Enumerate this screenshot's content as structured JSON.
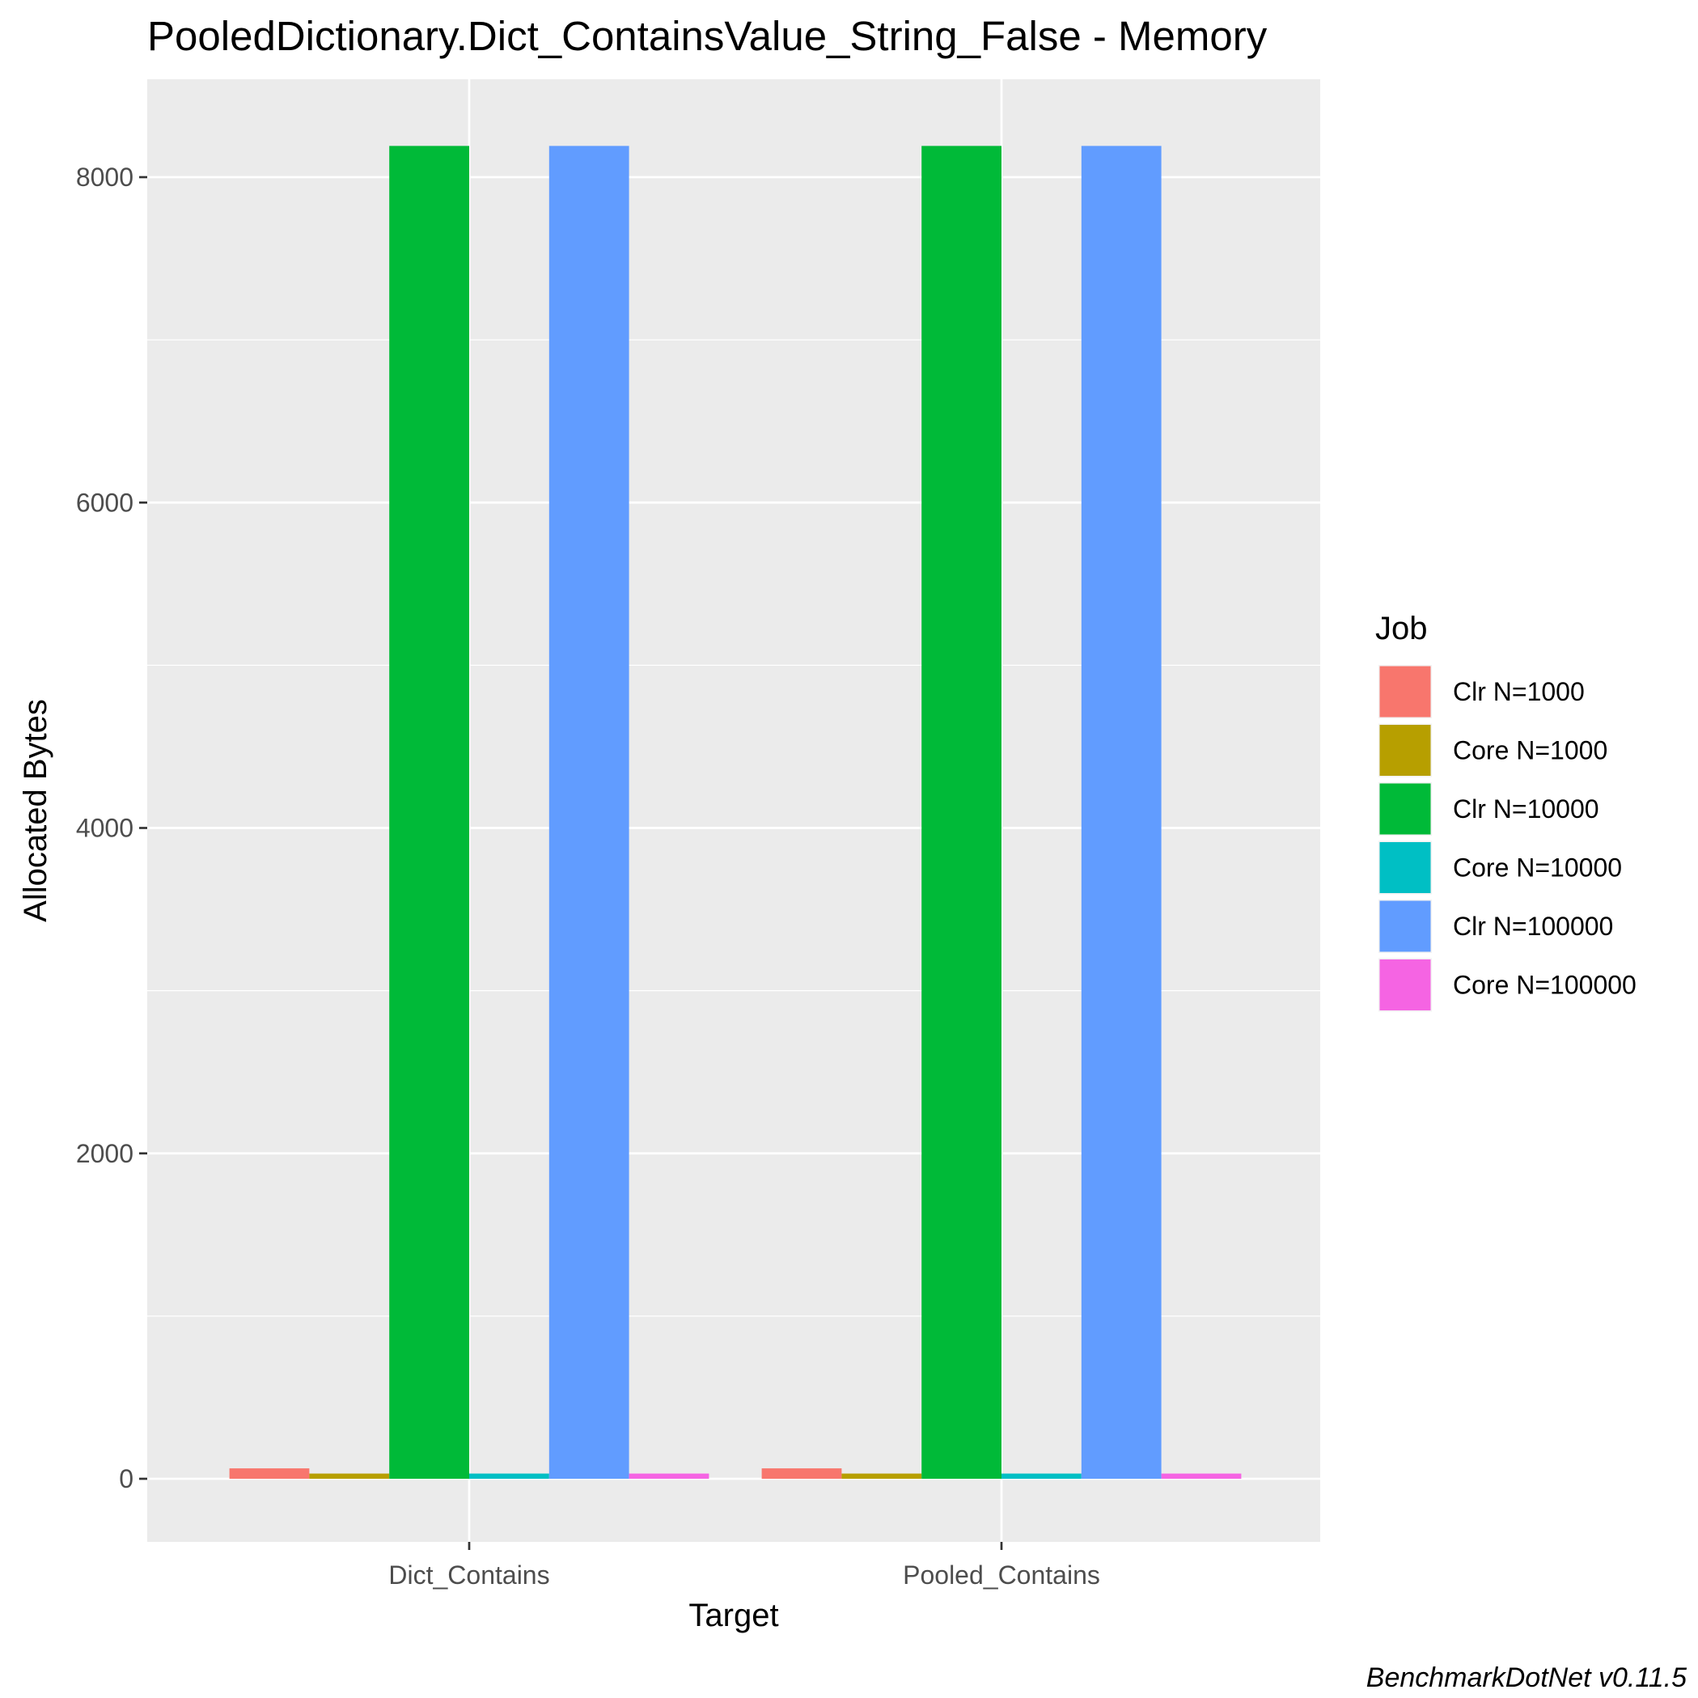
{
  "chart_data": {
    "type": "bar",
    "title": "PooledDictionary.Dict_ContainsValue_String_False - Memory",
    "xlabel": "Target",
    "ylabel": "Allocated  Bytes",
    "categories": [
      "Dict_Contains",
      "Pooled_Contains"
    ],
    "series": [
      {
        "name": "Clr N=1000",
        "color": "#F8766D",
        "values": [
          64,
          64
        ]
      },
      {
        "name": "Core N=1000",
        "color": "#B79F00",
        "values": [
          32,
          32
        ]
      },
      {
        "name": "Clr N=10000",
        "color": "#00BA38",
        "values": [
          8192,
          8192
        ]
      },
      {
        "name": "Core N=10000",
        "color": "#00BFC4",
        "values": [
          32,
          32
        ]
      },
      {
        "name": "Clr N=100000",
        "color": "#619CFF",
        "values": [
          8192,
          8192
        ]
      },
      {
        "name": "Core N=100000",
        "color": "#F564E3",
        "values": [
          32,
          32
        ]
      }
    ],
    "ylim": [
      -410,
      8600
    ],
    "yticks": [
      0,
      2000,
      4000,
      6000,
      8000
    ],
    "legend_title": "Job",
    "legend_position": "right",
    "grid": true,
    "panel_background": "#EBEBEB",
    "caption": "BenchmarkDotNet v0.11.5"
  }
}
